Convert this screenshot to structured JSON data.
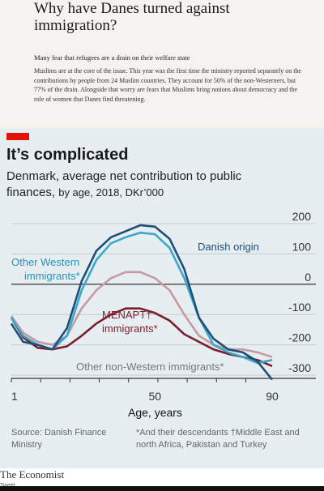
{
  "article": {
    "headline": "Why have Danes turned against immigration?",
    "subhead": "Many fear that refugees are a drain on their welfare state",
    "body": "Muslims are at the core of the issue. This year was the first time the ministry reported separately on the contributions by people from 24 Muslim countries. They account for 50% of the non-Westerners, but 77% of the drain. Alongside that worry are fears that Muslims bring notions about democracy and the role of women that Danes find threatening."
  },
  "chart": {
    "title": "It’s complicated",
    "subtitle_main": "Denmark, average net contribution to public finances,",
    "subtitle_tail": "by age, 2018, DKr’000",
    "source": "Source: Danish Finance Ministry",
    "footnote": "*And their descendants  †Middle East and north Africa, Pakistan and Turkey",
    "label_danish": "Danish origin",
    "label_other_western_1": "Other Western",
    "label_other_western_2": "immigrants*",
    "label_menapt_1": "MENAPT†",
    "label_menapt_2": "immigrants*",
    "label_non_western": "Other non-Western immigrants*",
    "xlabel": "Age, years",
    "accent": "#e3120b",
    "colors": {
      "danish": "#1f4e79",
      "other_western": "#3ba7c9",
      "menapt": "#7a1f2b",
      "non_western": "#c79aa0"
    }
  },
  "brand": {
    "name": "The Economist",
    "sub": "Tweet"
  },
  "chart_data": {
    "type": "line",
    "title": "It’s complicated",
    "subtitle": "Denmark, average net contribution to public finances, by age, 2018, DKr’000",
    "xlabel": "Age, years",
    "ylabel": "",
    "xlim": [
      1,
      90
    ],
    "ylim": [
      -300,
      200
    ],
    "xticks": [
      1,
      50,
      90
    ],
    "yticks": [
      200,
      100,
      0,
      -100,
      -200,
      -300
    ],
    "grid": true,
    "x": [
      1,
      5,
      10,
      15,
      20,
      25,
      30,
      35,
      40,
      45,
      50,
      55,
      60,
      65,
      70,
      75,
      80,
      85,
      90
    ],
    "series": [
      {
        "name": "Danish origin",
        "values": [
          -130,
          -190,
          -200,
          -215,
          -145,
          10,
          110,
          155,
          175,
          195,
          190,
          150,
          50,
          -110,
          -180,
          -215,
          -225,
          -255,
          -315
        ]
      },
      {
        "name": "Other Western immigrants*",
        "values": [
          -110,
          -170,
          -200,
          -215,
          -170,
          -20,
          80,
          135,
          155,
          170,
          165,
          120,
          20,
          -110,
          -200,
          -225,
          -240,
          -260,
          -250
        ]
      },
      {
        "name": "MENAPT† immigrants*",
        "values": [
          -110,
          -175,
          -210,
          -215,
          -205,
          -170,
          -130,
          -100,
          -80,
          -80,
          -95,
          -120,
          -165,
          -190,
          -215,
          -230,
          -240,
          -250,
          -270
        ]
      },
      {
        "name": "Other non-Western immigrants*",
        "values": [
          -105,
          -160,
          -190,
          -200,
          -170,
          -80,
          -20,
          20,
          40,
          40,
          20,
          -20,
          -100,
          -170,
          -200,
          -215,
          -215,
          -225,
          -240
        ]
      }
    ]
  }
}
